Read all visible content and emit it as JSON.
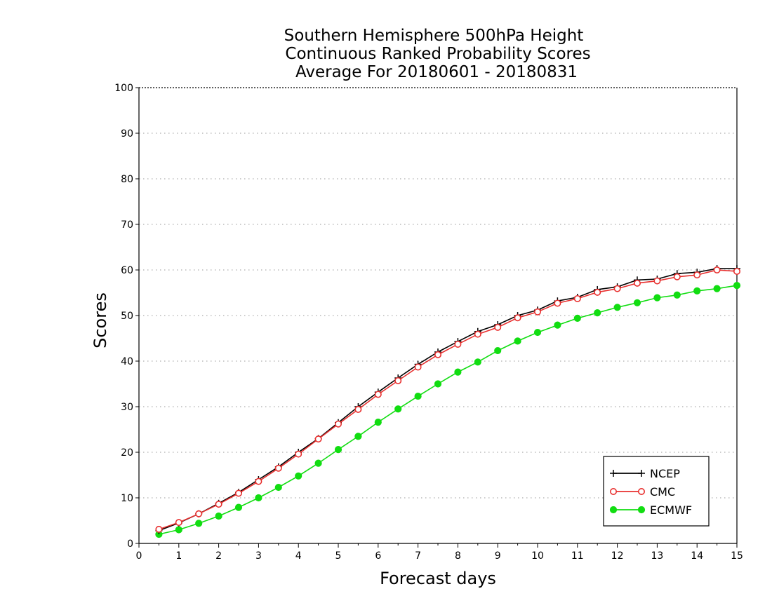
{
  "chart_data": {
    "type": "line",
    "title": [
      "Southern Hemisphere 500hPa Height",
      "Continuous Ranked Probability Scores",
      "Average For 20180601 - 20180831"
    ],
    "xlabel": "Forecast days",
    "ylabel": "Scores",
    "xlim": [
      0,
      15
    ],
    "ylim": [
      0,
      100
    ],
    "xticks": [
      "0",
      "1",
      "2",
      "3",
      "4",
      "5",
      "6",
      "7",
      "8",
      "9",
      "10",
      "11",
      "12",
      "13",
      "14",
      "15"
    ],
    "yticks": [
      "0",
      "10",
      "20",
      "30",
      "40",
      "50",
      "60",
      "70",
      "80",
      "90",
      "100"
    ],
    "grid": true,
    "legend_position": "bottom-right",
    "x": [
      0.5,
      1,
      1.5,
      2,
      2.5,
      3,
      3.5,
      4,
      4.5,
      5,
      5.5,
      6,
      6.5,
      7,
      7.5,
      8,
      8.5,
      9,
      9.5,
      10,
      10.5,
      11,
      11.5,
      12,
      12.5,
      13,
      13.5,
      14,
      14.5,
      15
    ],
    "series": [
      {
        "name": "NCEP",
        "color": "#000000",
        "marker": "plus",
        "values": [
          2.8,
          4.5,
          6.5,
          8.8,
          11.2,
          14,
          16.8,
          20,
          23,
          26.5,
          30,
          33.2,
          36.3,
          39.3,
          42,
          44.3,
          46.5,
          48,
          50,
          51.2,
          53.2,
          54,
          55.7,
          56.3,
          57.8,
          58,
          59.2,
          59.5,
          60.3,
          60.3
        ]
      },
      {
        "name": "CMC",
        "color": "#e8302f",
        "marker": "open-circle",
        "values": [
          3.1,
          4.6,
          6.5,
          8.6,
          11,
          13.6,
          16.5,
          19.6,
          22.9,
          26.2,
          29.4,
          32.7,
          35.7,
          38.7,
          41.4,
          43.7,
          45.9,
          47.4,
          49.5,
          50.8,
          52.7,
          53.7,
          55.1,
          55.9,
          57.1,
          57.6,
          58.5,
          58.9,
          60,
          59.7
        ]
      },
      {
        "name": "ECMWF",
        "color": "#11dd11",
        "marker": "filled-circle",
        "values": [
          2,
          3,
          4.4,
          6,
          7.9,
          10,
          12.3,
          14.8,
          17.6,
          20.6,
          23.5,
          26.6,
          29.5,
          32.3,
          35,
          37.6,
          39.8,
          42.3,
          44.4,
          46.3,
          47.9,
          49.4,
          50.6,
          51.8,
          52.8,
          53.9,
          54.5,
          55.4,
          55.9,
          56.6
        ]
      }
    ]
  }
}
